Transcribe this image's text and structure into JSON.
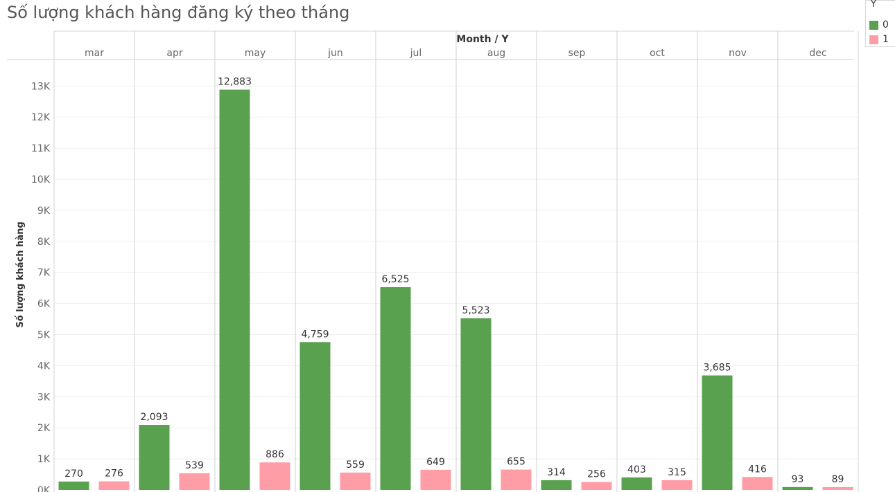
{
  "title": "Số lượng khách hàng đăng ký theo tháng",
  "colors": {
    "series_0": "#59a14f",
    "series_1": "#ff9da7"
  },
  "legend": {
    "title": "Y",
    "items": [
      "0",
      "1"
    ]
  },
  "chart_data": {
    "type": "bar",
    "header_label": "Month / Y",
    "categories": [
      "mar",
      "apr",
      "may",
      "jun",
      "jul",
      "aug",
      "sep",
      "oct",
      "nov",
      "dec"
    ],
    "series": [
      {
        "name": "0",
        "values": [
          270,
          2093,
          12883,
          4759,
          6525,
          5523,
          314,
          403,
          3685,
          93
        ]
      },
      {
        "name": "1",
        "values": [
          276,
          539,
          886,
          559,
          649,
          655,
          256,
          315,
          416,
          89
        ]
      }
    ],
    "ylabel": "Số lượng khách hàng",
    "ylim": [
      0,
      14000
    ],
    "yticks": [
      0,
      1000,
      2000,
      3000,
      4000,
      5000,
      6000,
      7000,
      8000,
      9000,
      10000,
      11000,
      12000,
      13000
    ],
    "ytick_labels": [
      "0K",
      "1K",
      "2K",
      "3K",
      "4K",
      "5K",
      "6K",
      "7K",
      "8K",
      "9K",
      "10K",
      "11K",
      "12K",
      "13K"
    ],
    "data_labels": [
      [
        "270",
        "2,093",
        "12,883",
        "4,759",
        "6,525",
        "5,523",
        "314",
        "403",
        "3,685",
        "93"
      ],
      [
        "276",
        "539",
        "886",
        "559",
        "649",
        "655",
        "256",
        "315",
        "416",
        "89"
      ]
    ],
    "grid": true,
    "legend_position": "top-right"
  }
}
